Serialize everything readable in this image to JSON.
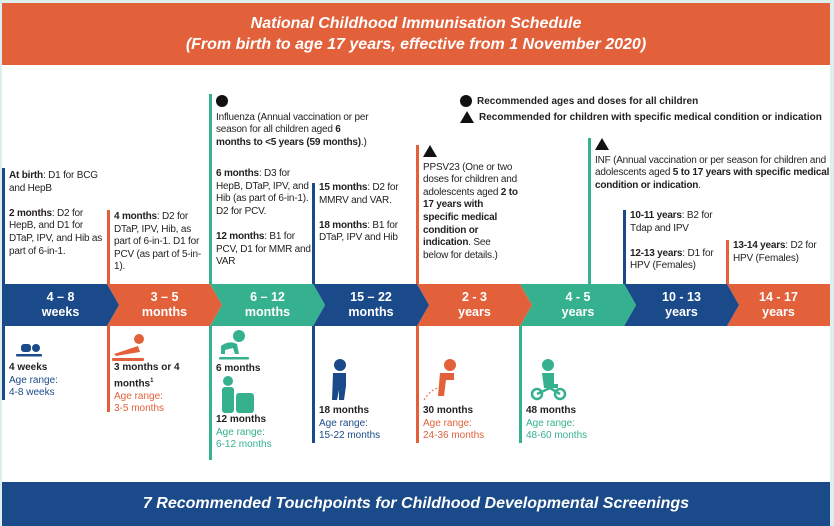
{
  "header": {
    "title": "National Childhood Immunisation Schedule",
    "subtitle": "(From birth to age 17 years, effective from 1 November 2020)"
  },
  "legend": {
    "all": "Recommended ages and doses for all children",
    "specific": "Recommended for children with specific medical condition or indication",
    "circle_icon": "circle",
    "triangle_icon": "triangle"
  },
  "schedule": {
    "birth_b": "At birth",
    "birth_t": ": D1 for BCG and HepB",
    "m2_b": "2 months",
    "m2_t": ": D2 for HepB, and D1 for DTaP, IPV, and Hib as part of 6-in-1.",
    "m4_b": "4 months",
    "m4_t": ": D2 for DTaP, IPV, Hib, as part of 6-in-1. D1 for PCV (as part of 5-in-1).",
    "flu_t": "Influenza (Annual vaccination or per season for all children aged ",
    "flu_b": "6 months to <5 years (59 months)",
    "flu_e": ".)",
    "m6_b": "6 months",
    "m6_t": ": D3 for HepB, DTaP, IPV, and Hib (as part of 6-in-1). D2 for PCV.",
    "m12_b": "12 months",
    "m12_t": ": B1 for PCV, D1 for MMR and VAR",
    "m15_b": "15 months",
    "m15_t": ": D2 for MMRV and VAR.",
    "m18_b": "18 months",
    "m18_t": ": B1 for DTaP, IPV and Hib",
    "ppsv_t": "PPSV23 (One or two doses for children and adolescents aged ",
    "ppsv_b": "2 to 17 years with specific medical condition or indication",
    "ppsv_e": ". See below for details.)",
    "inf_t": "INF (Annual vaccination or per season for children and adolescents aged ",
    "inf_b": "5 to 17 years with specific medical condition or indication",
    "inf_e": ".",
    "y10_b": "10-11 years",
    "y10_t": ": B2 for Tdap and IPV",
    "y12_b": "12-13 years",
    "y12_t": ": D1 for HPV (Females)",
    "y13_b": "13-14 years",
    "y13_t": ": D2 for HPV (Females)"
  },
  "timeline": [
    {
      "l1": "4 – 8",
      "l2": "weeks",
      "color": "#1b4a8a"
    },
    {
      "l1": "3 – 5",
      "l2": "months",
      "color": "#e2613b"
    },
    {
      "l1": "6 – 12",
      "l2": "months",
      "color": "#35b18f"
    },
    {
      "l1": "15 – 22",
      "l2": "months",
      "color": "#1b4a8a"
    },
    {
      "l1": "2 - 3",
      "l2": "years",
      "color": "#e2613b"
    },
    {
      "l1": "4 - 5",
      "l2": "years",
      "color": "#35b18f"
    },
    {
      "l1": "10 - 13",
      "l2": "years",
      "color": "#1b4a8a"
    },
    {
      "l1": "14 - 17",
      "l2": "years",
      "color": "#e2613b"
    }
  ],
  "touchpoints": [
    {
      "age": "4 weeks",
      "label": "Age range:",
      "range": "4-8 weeks"
    },
    {
      "age": "3 months or 4 months",
      "sup": "1",
      "label": "Age range:",
      "range": "3-5 months"
    },
    {
      "age": "6 months"
    },
    {
      "age": "12 months",
      "label": "Age range:",
      "range": "6-12 months"
    },
    {
      "age": "18 months",
      "label": "Age range:",
      "range": "15-22 months"
    },
    {
      "age": "30 months",
      "label": "Age range:",
      "range": "24-36 months"
    },
    {
      "age": "48 months",
      "label": "Age range:",
      "range": "48-60 months"
    }
  ],
  "footer": {
    "title": "7 Recommended Touchpoints for Childhood Developmental Screenings"
  }
}
